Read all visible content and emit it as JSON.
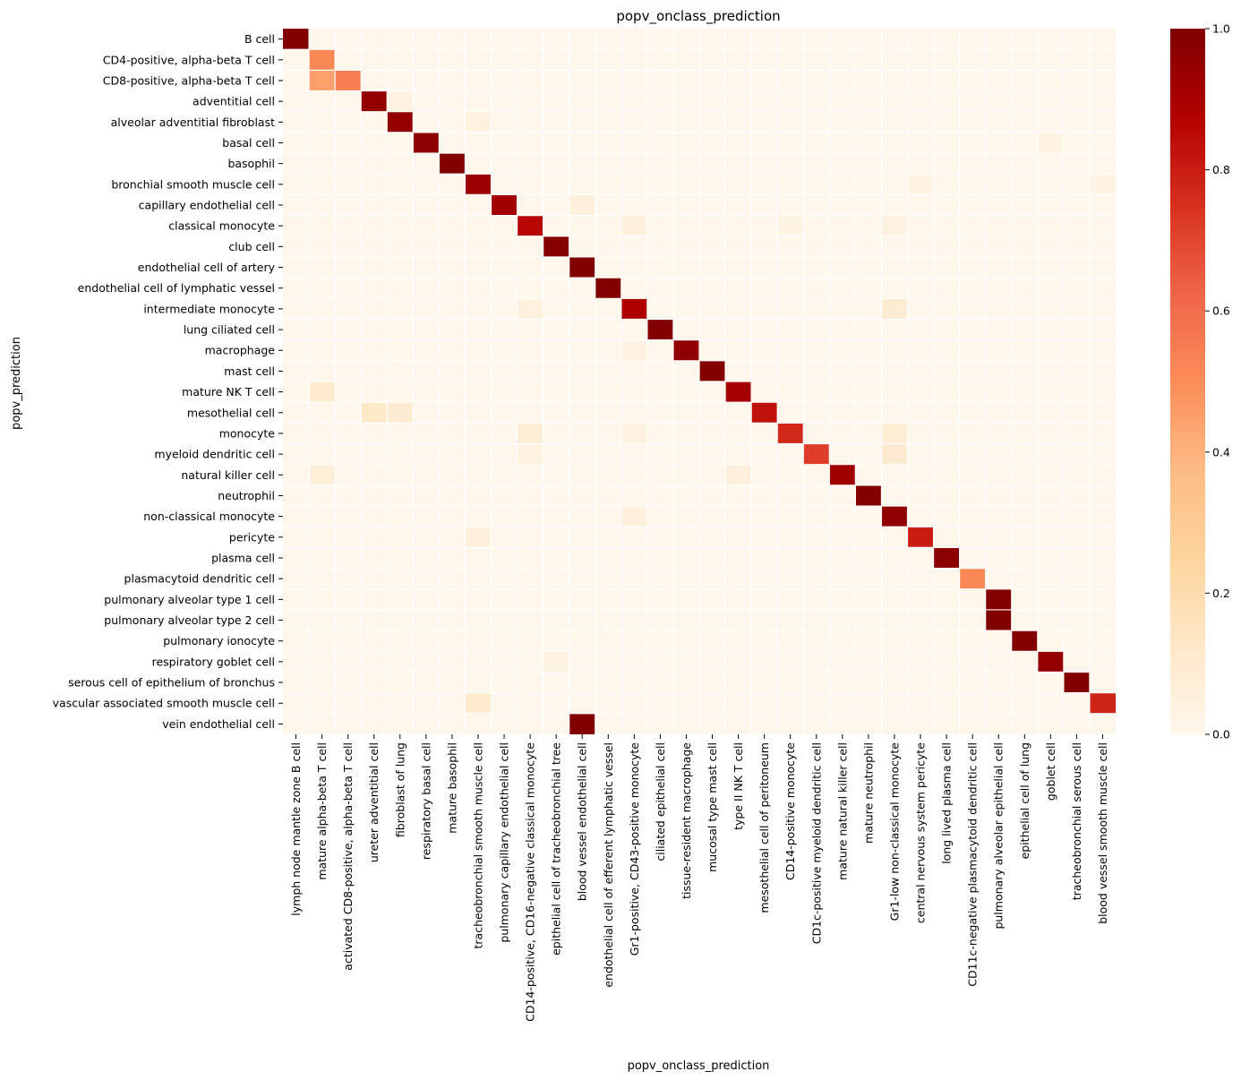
{
  "chart_data": {
    "type": "heatmap",
    "title": "popv_onclass_prediction",
    "xlabel": "popv_onclass_prediction",
    "ylabel": "popv_prediction",
    "colormap": "OrRd",
    "vmin": 0.0,
    "vmax": 1.0,
    "colorbar_ticks": [
      "0.0",
      "0.2",
      "0.4",
      "0.6",
      "0.8",
      "1.0"
    ],
    "rows": [
      "B cell",
      "CD4-positive, alpha-beta T cell",
      "CD8-positive, alpha-beta T cell",
      "adventitial cell",
      "alveolar adventitial fibroblast",
      "basal cell",
      "basophil",
      "bronchial smooth muscle cell",
      "capillary endothelial cell",
      "classical monocyte",
      "club cell",
      "endothelial cell of artery",
      "endothelial cell of lymphatic vessel",
      "intermediate monocyte",
      "lung ciliated cell",
      "macrophage",
      "mast cell",
      "mature NK T cell",
      "mesothelial cell",
      "monocyte",
      "myeloid dendritic cell",
      "natural killer cell",
      "neutrophil",
      "non-classical monocyte",
      "pericyte",
      "plasma cell",
      "plasmacytoid dendritic cell",
      "pulmonary alveolar type 1 cell",
      "pulmonary alveolar type 2 cell",
      "pulmonary ionocyte",
      "respiratory goblet cell",
      "serous cell of epithelium of bronchus",
      "vascular associated smooth muscle cell",
      "vein endothelial cell"
    ],
    "columns": [
      "lymph node mantle zone B cell",
      "mature alpha-beta T cell",
      "activated CD8-positive, alpha-beta T cell",
      "ureter adventitial cell",
      "fibroblast of lung",
      "respiratory basal cell",
      "mature basophil",
      "tracheobronchial smooth muscle cell",
      "pulmonary capillary endothelial cell",
      "CD14-positive, CD16-negative classical monocyte",
      "epithelial cell of tracheobronchial tree",
      "blood vessel endothelial cell",
      "endothelial cell of efferent lymphatic vessel",
      "Gr1-positive, CD43-positive monocyte",
      "ciliated epithelial cell",
      "tissue-resident macrophage",
      "mucosal type mast cell",
      "type II NK T cell",
      "mesothelial cell of peritoneum",
      "CD14-positive monocyte",
      "CD1c-positive myeloid dendritic cell",
      "mature natural killer cell",
      "mature neutrophil",
      "Gr1-low non-classical monocyte",
      "central nervous system pericyte",
      "long lived plasma cell",
      "CD11c-negative plasmacytoid dendritic cell",
      "pulmonary alveolar epithelial cell",
      "epithelial cell of lung",
      "goblet cell",
      "tracheobronchial serous cell",
      "blood vessel smooth muscle cell"
    ],
    "cells": [
      [
        0,
        0,
        0.99
      ],
      [
        1,
        1,
        0.52
      ],
      [
        2,
        1,
        0.45
      ],
      [
        2,
        2,
        0.55
      ],
      [
        3,
        3,
        0.95
      ],
      [
        3,
        4,
        0.04
      ],
      [
        4,
        4,
        0.95
      ],
      [
        4,
        7,
        0.05
      ],
      [
        5,
        5,
        0.97
      ],
      [
        5,
        29,
        0.03
      ],
      [
        6,
        6,
        0.99
      ],
      [
        7,
        7,
        0.93
      ],
      [
        7,
        24,
        0.03
      ],
      [
        7,
        31,
        0.03
      ],
      [
        8,
        8,
        0.92
      ],
      [
        8,
        11,
        0.06
      ],
      [
        9,
        9,
        0.86
      ],
      [
        9,
        13,
        0.06
      ],
      [
        9,
        19,
        0.03
      ],
      [
        9,
        23,
        0.04
      ],
      [
        10,
        10,
        0.98
      ],
      [
        11,
        11,
        0.99
      ],
      [
        12,
        12,
        0.99
      ],
      [
        13,
        9,
        0.05
      ],
      [
        13,
        13,
        0.88
      ],
      [
        13,
        23,
        0.09
      ],
      [
        14,
        14,
        0.99
      ],
      [
        15,
        13,
        0.04
      ],
      [
        15,
        15,
        0.96
      ],
      [
        16,
        16,
        0.99
      ],
      [
        17,
        1,
        0.11
      ],
      [
        17,
        17,
        0.91
      ],
      [
        18,
        3,
        0.12
      ],
      [
        18,
        4,
        0.09
      ],
      [
        18,
        18,
        0.83
      ],
      [
        19,
        9,
        0.08
      ],
      [
        19,
        13,
        0.04
      ],
      [
        19,
        19,
        0.77
      ],
      [
        19,
        23,
        0.08
      ],
      [
        20,
        9,
        0.04
      ],
      [
        20,
        20,
        0.72
      ],
      [
        20,
        23,
        0.1
      ],
      [
        21,
        1,
        0.07
      ],
      [
        21,
        17,
        0.06
      ],
      [
        21,
        21,
        0.92
      ],
      [
        22,
        22,
        0.99
      ],
      [
        23,
        13,
        0.06
      ],
      [
        23,
        23,
        0.96
      ],
      [
        24,
        7,
        0.06
      ],
      [
        24,
        24,
        0.8
      ],
      [
        25,
        25,
        0.97
      ],
      [
        26,
        26,
        0.52
      ],
      [
        27,
        27,
        0.99
      ],
      [
        28,
        27,
        0.99
      ],
      [
        29,
        28,
        0.99
      ],
      [
        30,
        10,
        0.03
      ],
      [
        30,
        29,
        0.95
      ],
      [
        31,
        30,
        0.99
      ],
      [
        32,
        7,
        0.11
      ],
      [
        32,
        31,
        0.78
      ],
      [
        33,
        11,
        0.99
      ]
    ],
    "grid": false,
    "legend": "colorbar right"
  }
}
